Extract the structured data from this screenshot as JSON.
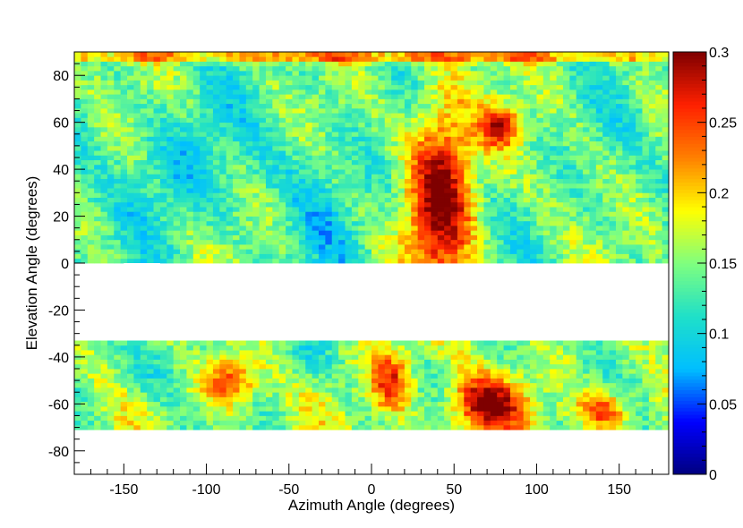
{
  "chart_data": {
    "type": "heatmap",
    "title": "",
    "xlabel": "Azimuth Angle (degrees)",
    "ylabel": "Elevation Angle (degrees)",
    "xlim": [
      -180,
      180
    ],
    "ylim": [
      -90,
      90
    ],
    "x_ticks": [
      -150,
      -100,
      -50,
      0,
      50,
      100,
      150
    ],
    "y_ticks": [
      -80,
      -60,
      -40,
      -20,
      0,
      20,
      40,
      60,
      80
    ],
    "colorbar": {
      "range": [
        0,
        0.3
      ],
      "ticks": [
        0,
        0.05,
        0.1,
        0.15,
        0.2,
        0.25,
        0.3
      ],
      "tick_labels": [
        "0",
        "0.05",
        "0.1",
        "0.15",
        "0.2",
        "0.25",
        "0.3"
      ],
      "colormap": [
        "#00007f",
        "#0000ff",
        "#00bfff",
        "#1fe0c8",
        "#7fff7f",
        "#ffff00",
        "#ff8000",
        "#ff2000",
        "#7f0000"
      ]
    },
    "data_bands": [
      {
        "elevation_range": [
          0,
          90
        ],
        "baseline": 0.14
      },
      {
        "elevation_range": [
          -71,
          -33
        ],
        "baseline": 0.15
      }
    ],
    "gaps": [
      {
        "azimuth_range": [
          -150,
          -128
        ],
        "elevation_range": [
          -2,
          0
        ]
      }
    ],
    "hotspots": [
      {
        "azimuth": 42,
        "elevation": 30,
        "sigma_azimuth": 14,
        "sigma_elevation": 30,
        "value": 0.3
      },
      {
        "azimuth": 78,
        "elevation": 58,
        "sigma_azimuth": 8,
        "sigma_elevation": 6,
        "value": 0.26
      },
      {
        "azimuth": -85,
        "elevation": -50,
        "sigma_azimuth": 12,
        "sigma_elevation": 8,
        "value": 0.27
      },
      {
        "azimuth": 12,
        "elevation": -50,
        "sigma_azimuth": 9,
        "sigma_elevation": 10,
        "value": 0.26
      },
      {
        "azimuth": 70,
        "elevation": -60,
        "sigma_azimuth": 16,
        "sigma_elevation": 8,
        "value": 0.29
      },
      {
        "azimuth": 140,
        "elevation": -63,
        "sigma_azimuth": 12,
        "sigma_elevation": 6,
        "value": 0.26
      },
      {
        "azimuth": 0,
        "elevation": 88,
        "sigma_azimuth": 200,
        "sigma_elevation": 1.5,
        "value": 0.24
      },
      {
        "azimuth": -120,
        "elevation": 40,
        "sigma_azimuth": 25,
        "sigma_elevation": 18,
        "value": 0.1
      },
      {
        "azimuth": -30,
        "elevation": 30,
        "sigma_azimuth": 20,
        "sigma_elevation": 25,
        "value": 0.11
      },
      {
        "azimuth": -40,
        "elevation": -40,
        "sigma_azimuth": 12,
        "sigma_elevation": 8,
        "value": 0.11
      },
      {
        "azimuth": -130,
        "elevation": -45,
        "sigma_azimuth": 15,
        "sigma_elevation": 10,
        "value": 0.11
      }
    ]
  }
}
